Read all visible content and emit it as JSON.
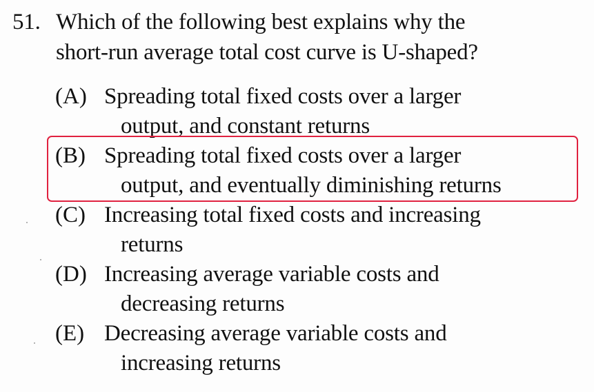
{
  "question": {
    "number": "51.",
    "line1": "Which of the following best explains why the",
    "line2": "short-run average total cost curve is U-shaped?"
  },
  "options": [
    {
      "letter": "(A)",
      "line1": "Spreading total fixed costs over a larger",
      "line2": "output, and constant returns"
    },
    {
      "letter": "(B)",
      "line1": "Spreading total fixed costs over a larger",
      "line2": "output, and eventually diminishing returns"
    },
    {
      "letter": "(C)",
      "line1": "Increasing total fixed costs and increasing",
      "line2": "returns"
    },
    {
      "letter": "(D)",
      "line1": "Increasing average variable costs and",
      "line2": "decreasing returns"
    },
    {
      "letter": "(E)",
      "line1": "Decreasing average variable costs and",
      "line2": "increasing returns"
    }
  ],
  "highlight": {
    "option": "(B)",
    "color": "#e0213f"
  }
}
